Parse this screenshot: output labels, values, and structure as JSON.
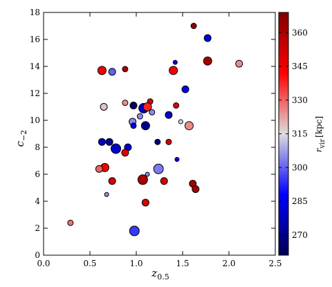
{
  "chart_data": {
    "type": "scatter",
    "xlabel": {
      "main": "z",
      "sub": "0.5"
    },
    "ylabel": {
      "main": "c",
      "sub": "−2"
    },
    "colorbar_label": {
      "main": "r",
      "sub": "vir",
      "unit": "[kpc]"
    },
    "x": [
      1.62,
      1.77,
      1.77,
      2.11,
      0.63,
      0.74,
      0.88,
      1.4,
      1.42,
      1.53,
      1.15,
      1.43,
      0.97,
      0.88,
      0.65,
      1.08,
      1.12,
      1.17,
      1.04,
      1.35,
      1.48,
      1.57,
      0.96,
      0.97,
      1.1,
      0.63,
      0.71,
      0.78,
      0.91,
      0.88,
      1.23,
      1.35,
      1.44,
      0.66,
      0.6,
      1.24,
      1.12,
      0.74,
      1.07,
      1.3,
      1.61,
      1.64,
      0.68,
      1.1,
      0.29,
      0.98
    ],
    "y": [
      17.0,
      16.1,
      14.4,
      14.2,
      13.7,
      13.6,
      13.8,
      13.7,
      14.3,
      12.3,
      11.4,
      11.1,
      11.1,
      11.3,
      11.0,
      10.9,
      11.0,
      10.6,
      10.3,
      10.4,
      9.9,
      9.6,
      9.9,
      9.6,
      9.6,
      8.4,
      8.4,
      7.9,
      8.0,
      7.6,
      8.4,
      8.4,
      7.1,
      6.5,
      6.4,
      6.4,
      6.0,
      5.5,
      5.6,
      5.5,
      5.3,
      4.9,
      4.5,
      3.9,
      2.4,
      1.8
    ],
    "sizes": [
      4,
      5,
      6,
      5,
      6,
      5,
      4,
      6,
      3,
      5,
      4,
      4,
      5,
      4,
      5,
      7,
      6,
      4,
      4,
      5,
      3,
      6,
      5,
      4,
      6,
      5,
      5,
      7,
      5,
      5,
      4,
      4,
      3,
      6,
      5,
      7,
      3,
      5,
      7,
      5,
      5,
      5,
      3,
      5,
      4,
      7
    ],
    "color_values": [
      365,
      282,
      362,
      325,
      345,
      300,
      360,
      345,
      285,
      285,
      350,
      348,
      265,
      325,
      318,
      280,
      338,
      305,
      305,
      280,
      315,
      325,
      305,
      285,
      270,
      280,
      272,
      280,
      282,
      348,
      268,
      350,
      285,
      345,
      330,
      303,
      305,
      350,
      360,
      350,
      362,
      362,
      305,
      350,
      328,
      295
    ],
    "colormap": [
      "#000050",
      "#0000ff",
      "#dddddd",
      "#ff0000",
      "#800000"
    ],
    "clim": [
      261,
      369
    ],
    "xlim": [
      0,
      2.5
    ],
    "ylim": [
      0,
      18
    ],
    "xticks": [
      {
        "value": 0,
        "label": "0.0"
      },
      {
        "value": 0.5,
        "label": "0.5"
      },
      {
        "value": 1,
        "label": "1.0"
      },
      {
        "value": 1.5,
        "label": "1.5"
      },
      {
        "value": 2,
        "label": "2.0"
      },
      {
        "value": 2.5,
        "label": "2.5"
      }
    ],
    "yticks": [
      0,
      2,
      4,
      6,
      8,
      10,
      12,
      14,
      16,
      18
    ],
    "cticks": [
      270,
      285,
      300,
      315,
      330,
      345,
      360
    ]
  }
}
